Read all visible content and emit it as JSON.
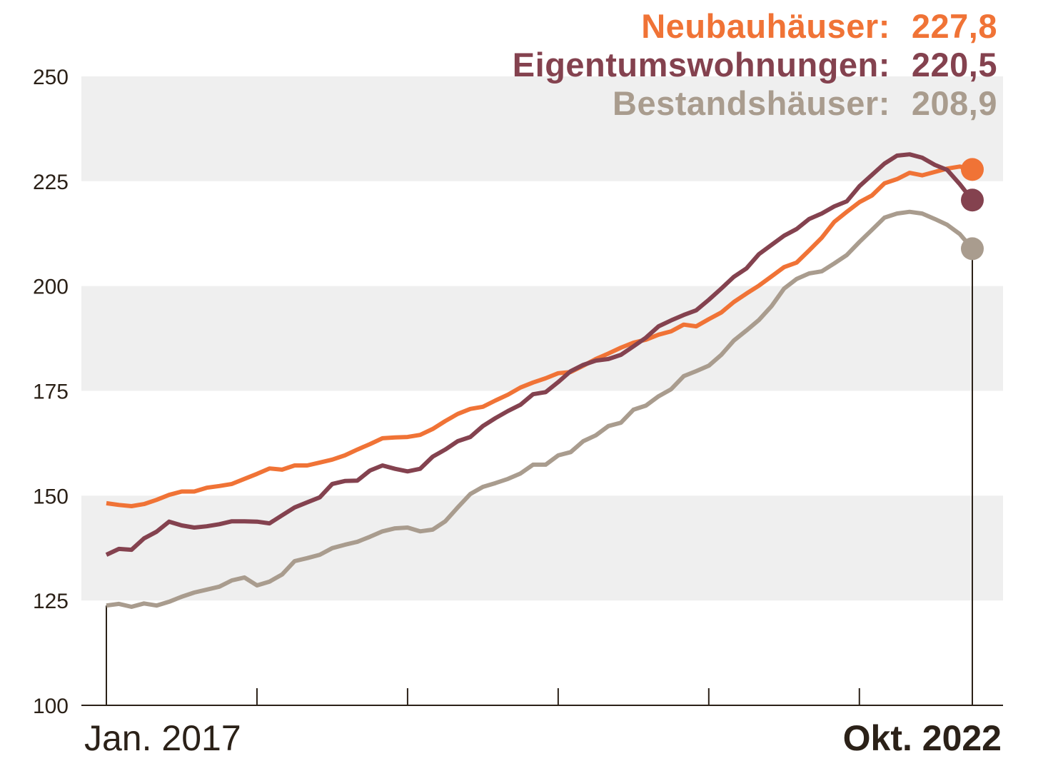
{
  "chart_data": {
    "type": "line",
    "x_start": "Jan. 2017",
    "x_end": "Okt. 2022",
    "x_labels": {
      "start": "Jan. 2017",
      "end": "Okt. 2022"
    },
    "ylim": [
      100,
      250
    ],
    "yticks": [
      "100",
      "125",
      "150",
      "175",
      "200",
      "225",
      "250"
    ],
    "grid": "alternating horizontal bands",
    "legend_placement": "top-right",
    "series": [
      {
        "name": "Neubauhäuser",
        "label": "Neubauhäuser:",
        "final_label": "227,8",
        "color": "#f07336",
        "values": [
          148.2,
          147.8,
          147.5,
          148,
          149,
          150.2,
          151,
          151,
          151.9,
          152.3,
          152.8,
          154,
          155.2,
          156.5,
          156.2,
          157.2,
          157.2,
          157.9,
          158.6,
          159.6,
          161,
          162.3,
          163.7,
          163.9,
          164,
          164.5,
          165.9,
          167.8,
          169.5,
          170.7,
          171.2,
          172.7,
          174.1,
          175.8,
          177,
          178,
          179.2,
          179.5,
          181,
          182.6,
          183.9,
          185.3,
          186.5,
          187.2,
          188.4,
          189.2,
          190.8,
          190.4,
          192.1,
          193.7,
          196.2,
          198.2,
          200.1,
          202.3,
          204.5,
          205.6,
          208.5,
          211.5,
          215.3,
          217.7,
          220,
          221.6,
          224.5,
          225.5,
          227,
          226.4,
          227.2,
          228,
          228.5,
          227.8
        ]
      },
      {
        "name": "Eigentumswohnungen",
        "label": "Eigentumswohnungen:",
        "final_label": "220,5",
        "color": "#84424f",
        "values": [
          135.9,
          137.3,
          137.1,
          139.8,
          141.4,
          143.8,
          142.9,
          142.4,
          142.7,
          143.2,
          143.9,
          143.9,
          143.8,
          143.4,
          145.3,
          147.2,
          148.4,
          149.6,
          152.8,
          153.5,
          153.6,
          156,
          157.2,
          156.4,
          155.8,
          156.4,
          159.3,
          161,
          163,
          164,
          166.6,
          168.5,
          170.2,
          171.7,
          174.2,
          174.7,
          177.1,
          179.7,
          181.2,
          182.2,
          182.6,
          183.6,
          185.6,
          187.7,
          190.4,
          191.8,
          193.1,
          194.2,
          196.7,
          199.4,
          202.2,
          204.2,
          207.6,
          209.8,
          212,
          213.6,
          216,
          217.3,
          219,
          220.2,
          223.8,
          226.5,
          229.2,
          231.1,
          231.4,
          230.6,
          228.9,
          227.7,
          224.3,
          220.5
        ]
      },
      {
        "name": "Bestandshäuser",
        "label": "Bestandshäuser:",
        "final_label": "208,9",
        "color": "#a99c8e",
        "values": [
          123.8,
          124.2,
          123.5,
          124.3,
          123.8,
          124.7,
          125.9,
          126.9,
          127.6,
          128.3,
          129.8,
          130.5,
          128.6,
          129.5,
          131.2,
          134.4,
          135.1,
          135.9,
          137.5,
          138.3,
          139,
          140.2,
          141.5,
          142.2,
          142.4,
          141.5,
          141.9,
          143.9,
          147.2,
          150.4,
          152.1,
          153,
          154,
          155.3,
          157.4,
          157.4,
          159.6,
          160.4,
          163,
          164.4,
          166.6,
          167.4,
          170.5,
          171.5,
          173.7,
          175.4,
          178.5,
          179.7,
          181,
          183.6,
          187,
          189.4,
          191.9,
          195.2,
          199.4,
          201.7,
          203,
          203.5,
          205.4,
          207.4,
          210.5,
          213.4,
          216.3,
          217.3,
          217.7,
          217.3,
          216,
          214.6,
          212.4,
          208.9
        ]
      }
    ]
  }
}
